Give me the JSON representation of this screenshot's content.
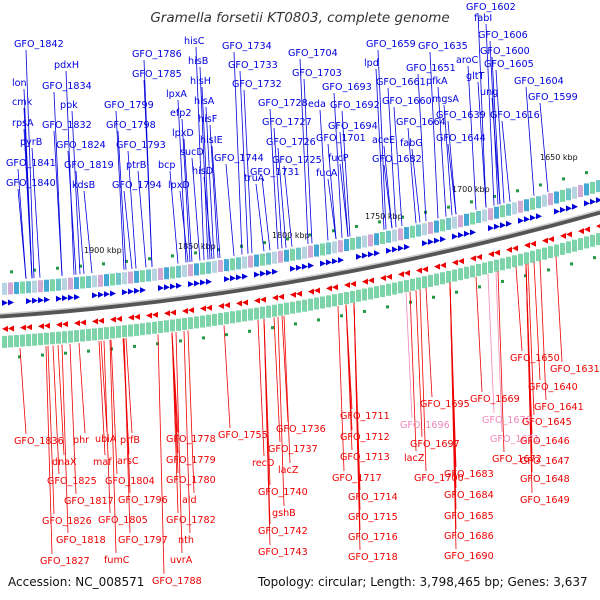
{
  "title": "Gramella forsetii KT0803, complete genome",
  "accession": "Accession: NC_008571",
  "topology": "Topology: circular; Length: 3,798,465 bp; Genes: 3,637",
  "colors": {
    "forward": "#0000dd",
    "reverse": "#ee0000",
    "reverse_faded": "#ee88bb",
    "backbone": "#666666"
  },
  "ticks": [
    "1900 kbp",
    "1850 kbp",
    "1800 kbp",
    "1750 kbp",
    "1700 kbp",
    "1650 kbp"
  ],
  "top_labels": [
    "GFO_1842",
    "lon",
    "cmk",
    "rpsA",
    "pyrB",
    "GFO_1841",
    "GFO_1840",
    "pdxH",
    "GFO_1834",
    "ppk",
    "GFO_1832",
    "GFO_1824",
    "GFO_1819",
    "kdsB",
    "GFO_1786",
    "GFO_1785",
    "GFO_1799",
    "GFO_1798",
    "GFO_1793",
    "ptrB",
    "GFO_1794",
    "hisC",
    "hisB",
    "hisH",
    "lpxA",
    "hisA",
    "efp2",
    "hisF",
    "lpxD",
    "hisIE",
    "sucD",
    "bcp",
    "hisD",
    "lpxD",
    "GFO_1734",
    "GFO_1733",
    "GFO_1732",
    "GFO_1744",
    "truA",
    "GFO_1728",
    "GFO_1727",
    "GFO_1726",
    "GFO_1725",
    "GFO_1731",
    "GFO_1704",
    "GFO_1703",
    "eda",
    "GFO_1693",
    "GFO_1692",
    "GFO_1694",
    "GFO_1701",
    "fucP",
    "fucA",
    "GFO_1659",
    "lpd",
    "GFO_1661",
    "GFO_1660",
    "aceE",
    "GFO_1664",
    "GFO_1651",
    "fabG",
    "GFO_1682",
    "GFO_1635",
    "pfkA",
    "mgsA",
    "GFO_1639",
    "GFO_1644",
    "GFO_1602",
    "fabI",
    "GFO_1606",
    "aroC",
    "GFO_1600",
    "GFO_1605",
    "gltT",
    "ung",
    "GFO_1604",
    "GFO_1599",
    "GFO_1616"
  ],
  "bottom_labels": [
    "GFO_1836",
    "dnaX",
    "phr",
    "ubiA",
    "prfB",
    "GFO_1825",
    "maf",
    "arsC",
    "GFO_1817",
    "GFO_1804",
    "GFO_1826",
    "GFO_1805",
    "GFO_1796",
    "GFO_1818",
    "GFO_1797",
    "fumC",
    "GFO_1827",
    "GFO_1778",
    "GFO_1779",
    "GFO_1780",
    "ald",
    "GFO_1782",
    "nth",
    "uvrA",
    "GFO_1788",
    "GFO_1755",
    "GFO_1736",
    "GFO_1737",
    "recO",
    "lacZ",
    "GFO_1740",
    "gshB",
    "GFO_1742",
    "GFO_1743",
    "GFO_1711",
    "GFO_1712",
    "GFO_1713",
    "GFO_1717",
    "GFO_1714",
    "GFO_1715",
    "GFO_1716",
    "GFO_1718",
    "GFO_1695",
    "GFO_1696",
    "GFO_1697",
    "lacZ",
    "GFO_1700",
    "GFO_1669",
    "GFO_1670",
    "GFO_1671",
    "GFO_1672",
    "GFO_1683",
    "GFO_1684",
    "GFO_1685",
    "GFO_1686",
    "GFO_1690",
    "GFO_1650",
    "GFO_1631",
    "GFO_1640",
    "GFO_1641",
    "GFO_1645",
    "GFO_1646",
    "GFO_1647",
    "GFO_1648",
    "GFO_1649"
  ]
}
